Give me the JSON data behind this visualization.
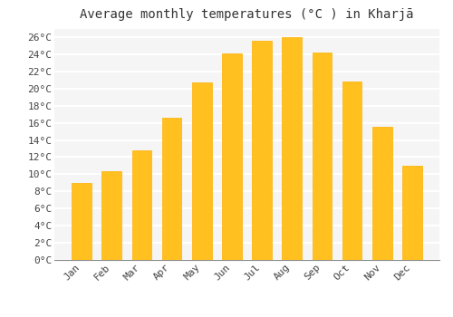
{
  "title": "Average monthly temperatures (°C ) in Kharjā",
  "months": [
    "Jan",
    "Feb",
    "Mar",
    "Apr",
    "May",
    "Jun",
    "Jul",
    "Aug",
    "Sep",
    "Oct",
    "Nov",
    "Dec"
  ],
  "values": [
    9.0,
    10.4,
    12.8,
    16.6,
    20.7,
    24.1,
    25.6,
    26.0,
    24.2,
    20.8,
    15.5,
    11.0
  ],
  "bar_color": "#FFC020",
  "bar_edge_color": "#FFB000",
  "background_color": "#FFFFFF",
  "plot_bg_color": "#F5F5F5",
  "grid_color": "#FFFFFF",
  "ylim": [
    0,
    27
  ],
  "ytick_step": 2,
  "title_fontsize": 10,
  "tick_fontsize": 8,
  "font_family": "monospace",
  "bar_width": 0.65
}
